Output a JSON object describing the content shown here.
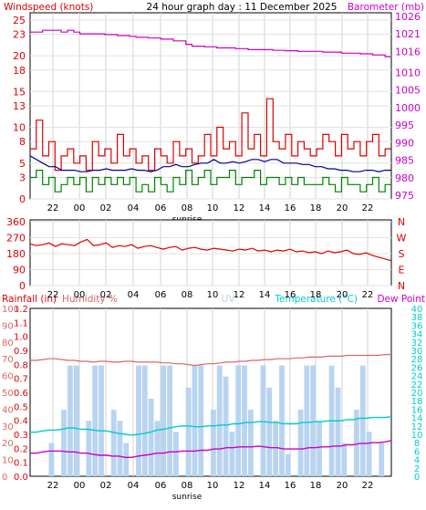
{
  "chart_data": [
    {
      "type": "line",
      "title": "24 hour graph day : 11 December 2025",
      "x_tick_labels": [
        "22",
        "00",
        "02",
        "04",
        "06",
        "08",
        "10",
        "12",
        "14",
        "16",
        "18",
        "20",
        "22"
      ],
      "sunrise_label": "sunrise",
      "grid": true,
      "y_left": {
        "label": "Windspeed (knots)",
        "range": [
          0,
          26
        ],
        "ticks": [
          0,
          3,
          5,
          8,
          10,
          13,
          15,
          18,
          20,
          23,
          25
        ]
      },
      "y_right": {
        "label": "Barometer (mb)",
        "range": [
          974,
          1027
        ],
        "ticks": [
          975,
          980,
          985,
          990,
          995,
          1000,
          1005,
          1010,
          1016,
          1021,
          1026
        ]
      },
      "series": [
        {
          "name": "Windspeed (knots)",
          "color": "#dd0000",
          "axis": "left",
          "values": [
            7,
            11,
            6,
            8,
            4,
            6,
            7,
            5,
            6,
            4,
            8,
            6,
            7,
            5,
            9,
            6,
            7,
            5,
            6,
            4,
            7,
            6,
            5,
            8,
            6,
            7,
            5,
            6,
            9,
            6,
            10,
            7,
            8,
            6,
            12,
            7,
            9,
            6,
            14,
            8,
            7,
            9,
            6,
            8,
            7,
            6,
            7,
            9,
            8,
            6,
            9,
            7,
            8,
            6,
            8,
            9,
            6,
            7
          ]
        },
        {
          "name": "Windspeed",
          "color": "#000099",
          "axis": "left",
          "values": [
            6,
            5.5,
            5,
            4.5,
            4.5,
            4,
            4,
            4,
            3.8,
            3.8,
            4,
            4,
            4.2,
            4,
            4,
            4,
            4.2,
            4,
            4,
            3.8,
            4,
            4.5,
            4.5,
            4.8,
            4.5,
            4.5,
            4.8,
            5,
            5,
            5.5,
            5,
            5,
            5.2,
            5,
            5.2,
            5.5,
            5.5,
            5.2,
            5.5,
            5.5,
            5,
            5,
            5,
            4.8,
            4.8,
            4.5,
            4.5,
            4.2,
            4.2,
            4,
            4,
            3.8,
            3.8,
            4,
            4,
            3.8,
            4,
            4
          ]
        },
        {
          "name": "Windspeed",
          "color": "#008000",
          "axis": "left",
          "values": [
            3,
            4,
            2,
            3,
            1,
            2,
            3,
            2,
            3,
            1,
            3,
            2,
            3,
            2,
            3,
            2,
            3,
            1,
            2,
            1,
            3,
            2,
            1,
            3,
            2,
            4,
            2,
            3,
            4,
            2,
            3,
            3,
            4,
            2,
            3,
            3,
            4,
            2,
            3,
            3,
            2,
            3,
            2,
            3,
            2,
            2,
            2,
            3,
            2,
            1,
            3,
            2,
            2,
            1,
            2,
            3,
            1,
            2
          ]
        },
        {
          "name": "Barometer (mb)",
          "color": "#cc00cc",
          "axis": "right",
          "values": [
            1021.5,
            1021.5,
            1022,
            1022,
            1022,
            1021.5,
            1022,
            1021.5,
            1021,
            1021,
            1021,
            1021,
            1020.8,
            1020.8,
            1020.5,
            1020.5,
            1020.3,
            1020,
            1020,
            1019.8,
            1019.8,
            1019.5,
            1019.5,
            1019,
            1019,
            1018,
            1017.5,
            1017.5,
            1017.3,
            1017.3,
            1017,
            1017,
            1017,
            1016.8,
            1016.8,
            1016.5,
            1016.5,
            1016.5,
            1016.5,
            1016.3,
            1016.3,
            1016.2,
            1016.2,
            1016,
            1016,
            1016,
            1016,
            1015.8,
            1015.8,
            1015.8,
            1015.5,
            1015.5,
            1015.5,
            1015.3,
            1015.3,
            1015,
            1015,
            1014.5
          ]
        }
      ]
    },
    {
      "type": "line",
      "title": "",
      "x_tick_labels": [
        "22",
        "00",
        "02",
        "04",
        "06",
        "08",
        "10",
        "12",
        "14",
        "16",
        "18",
        "20",
        "22"
      ],
      "sunrise_label": "sunrise",
      "grid": true,
      "y_left": {
        "label": "",
        "range": [
          0,
          370
        ],
        "ticks": [
          0,
          90,
          180,
          270,
          360
        ]
      },
      "y_right": {
        "label": "",
        "tick_labels": [
          "N",
          "W",
          "S",
          "E",
          "N"
        ]
      },
      "series": [
        {
          "name": "",
          "color": "#dd0000",
          "axis": "left",
          "values": [
            235,
            225,
            230,
            240,
            220,
            235,
            230,
            225,
            245,
            260,
            225,
            230,
            240,
            215,
            225,
            220,
            230,
            210,
            220,
            225,
            215,
            205,
            215,
            220,
            200,
            210,
            215,
            205,
            200,
            210,
            205,
            200,
            195,
            205,
            200,
            210,
            195,
            200,
            190,
            200,
            195,
            205,
            190,
            195,
            185,
            190,
            180,
            195,
            185,
            190,
            200,
            180,
            175,
            185,
            170,
            160,
            150,
            140
          ]
        }
      ]
    },
    {
      "type": "line",
      "title": "",
      "x_tick_labels": [
        "22",
        "00",
        "02",
        "04",
        "06",
        "08",
        "10",
        "12",
        "14",
        "16",
        "18",
        "20",
        "22"
      ],
      "sunrise_label": "sunrise",
      "grid": true,
      "axis_labels": [
        "Rainfall (in)",
        "Humidity %",
        "UV",
        "Temperature (°C)",
        "Dew Point"
      ],
      "y_rainfall": {
        "ticks": [
          "0.0",
          "0.1",
          "0.2",
          "0.3",
          "0.4",
          "0.5",
          "0.6",
          "0.7",
          "0.8",
          "0.9",
          "1.0",
          "1.1",
          "1.2"
        ]
      },
      "y_humidity": {
        "ticks": [
          "0",
          "10",
          "20",
          "30",
          "40",
          "50",
          "60",
          "70",
          "80",
          "90",
          "100"
        ],
        "range": [
          0,
          100
        ]
      },
      "y_temperature": {
        "ticks": [
          "0",
          "2",
          "4",
          "6",
          "8",
          "10",
          "12",
          "14",
          "16",
          "18",
          "20",
          "22",
          "24",
          "26",
          "28",
          "30",
          "32",
          "34",
          "36",
          "38",
          "40"
        ],
        "range": [
          0,
          40
        ]
      },
      "series": [
        {
          "name": "Humidity %",
          "color": "#dd6666",
          "axis": "humidity",
          "values": [
            69,
            69,
            69.5,
            70,
            70,
            69.5,
            69,
            69,
            68.5,
            68.5,
            68,
            68.5,
            68.5,
            68,
            68,
            68.5,
            68.5,
            68,
            68,
            68,
            68,
            67.5,
            67.5,
            67,
            67,
            66.5,
            66,
            66.5,
            67,
            67,
            67.5,
            68,
            68,
            68.5,
            68.5,
            69,
            69,
            69.5,
            69.5,
            70,
            70,
            70,
            70.5,
            70.5,
            71,
            71,
            71,
            71.5,
            71.5,
            71.5,
            72,
            72,
            72,
            72,
            72,
            72,
            72.5,
            72.5
          ]
        },
        {
          "name": "Temperature (°C)",
          "color": "#00cccc",
          "axis": "temperature",
          "values": [
            10.5,
            10.5,
            10.8,
            11,
            11,
            11.2,
            11.5,
            11.5,
            11.2,
            11.2,
            11,
            10.8,
            10.8,
            10.5,
            10.2,
            10,
            9.8,
            10,
            10.2,
            10.5,
            11,
            11.2,
            11.5,
            11.8,
            12,
            12,
            11.8,
            11.8,
            12,
            12,
            12.2,
            12.2,
            12.5,
            12.5,
            12.8,
            12.8,
            13,
            13,
            12.8,
            12.8,
            12.5,
            12.5,
            12.5,
            12.8,
            12.8,
            13,
            13,
            13.2,
            13.2,
            13.2,
            13.5,
            13.5,
            13.8,
            13.8,
            14,
            14,
            14,
            14.2
          ]
        },
        {
          "name": "Dew Point",
          "color": "#cc00cc",
          "axis": "temperature",
          "values": [
            5.5,
            5.5,
            5.8,
            6,
            6,
            6,
            5.8,
            5.8,
            5.5,
            5.5,
            5.2,
            5,
            5,
            4.8,
            4.8,
            4.5,
            4.5,
            4.8,
            5,
            5.2,
            5.5,
            5.5,
            5.8,
            5.8,
            6,
            6,
            6,
            6.2,
            6.2,
            6.5,
            6.5,
            6.8,
            6.8,
            7,
            7,
            7,
            7.2,
            7,
            6.8,
            6.8,
            6.5,
            6.5,
            6.5,
            6.5,
            6.8,
            6.8,
            7,
            7,
            7.2,
            7.2,
            7.5,
            7.5,
            7.8,
            7.8,
            8,
            8,
            8.2,
            8.5
          ]
        },
        {
          "name": "UV",
          "color": "#b8d4f0",
          "axis": "bars",
          "values": [
            0,
            0,
            0,
            0.3,
            0,
            0.6,
            1,
            1,
            0,
            0.5,
            1,
            1,
            0,
            0.6,
            0.5,
            0.3,
            0,
            1,
            1,
            0.7,
            0.5,
            1,
            1,
            0.4,
            0,
            0.8,
            1,
            1,
            0,
            0.6,
            1,
            0.9,
            0.4,
            1,
            1,
            0.6,
            0,
            1,
            0.8,
            0.5,
            1,
            0.2,
            0,
            0.6,
            1,
            1,
            0.5,
            0,
            1,
            0.8,
            0.3,
            0,
            0.6,
            1,
            0.4,
            0,
            0.3,
            0
          ]
        }
      ]
    }
  ]
}
